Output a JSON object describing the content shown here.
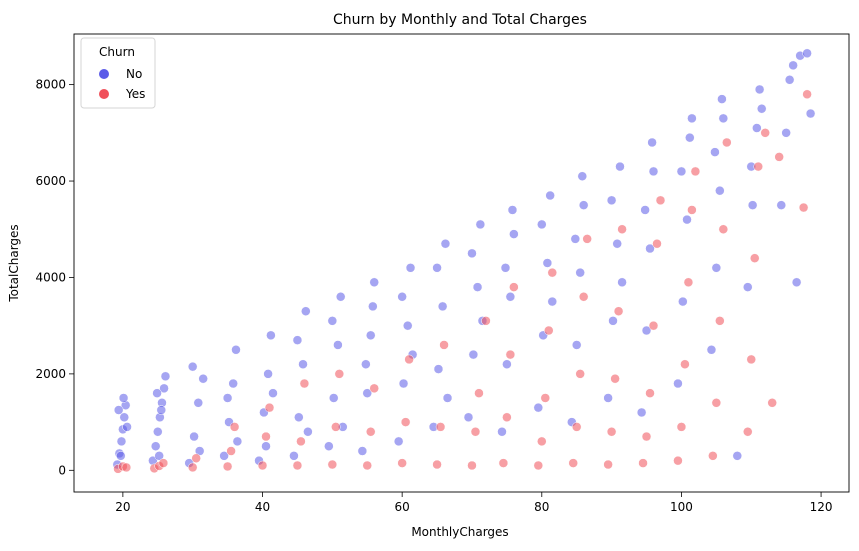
{
  "chart_data": {
    "type": "scatter",
    "title": "Churn by Monthly and Total Charges",
    "xlabel": "MonthlyCharges",
    "ylabel": "TotalCharges",
    "xlim": [
      13,
      124
    ],
    "ylim": [
      -450,
      9050
    ],
    "xticks": [
      20,
      40,
      60,
      80,
      100,
      120
    ],
    "yticks": [
      0,
      2000,
      4000,
      6000,
      8000
    ],
    "grid": false,
    "legend": {
      "title": "Churn",
      "placement": "top-left",
      "entries": [
        {
          "label": "No",
          "color": "#5b5be8"
        },
        {
          "label": "Yes",
          "color": "#f0505a"
        }
      ]
    },
    "series": [
      {
        "name": "No",
        "color": "#5b5be8",
        "points": [
          [
            19.2,
            120
          ],
          [
            19.5,
            350
          ],
          [
            19.8,
            600
          ],
          [
            20.0,
            850
          ],
          [
            20.2,
            1100
          ],
          [
            20.4,
            1350
          ],
          [
            20.1,
            1500
          ],
          [
            19.7,
            300
          ],
          [
            20.6,
            900
          ],
          [
            19.4,
            1250
          ],
          [
            24.3,
            200
          ],
          [
            24.7,
            500
          ],
          [
            25.0,
            800
          ],
          [
            25.3,
            1100
          ],
          [
            25.6,
            1400
          ],
          [
            25.9,
            1700
          ],
          [
            26.1,
            1950
          ],
          [
            24.9,
            1600
          ],
          [
            25.2,
            300
          ],
          [
            25.5,
            1250
          ],
          [
            29.5,
            150
          ],
          [
            30.2,
            700
          ],
          [
            30.8,
            1400
          ],
          [
            31.5,
            1900
          ],
          [
            30.0,
            2150
          ],
          [
            31.0,
            400
          ],
          [
            34.5,
            300
          ],
          [
            35.2,
            1000
          ],
          [
            35.8,
            1800
          ],
          [
            36.2,
            2500
          ],
          [
            35.0,
            1500
          ],
          [
            36.4,
            600
          ],
          [
            39.5,
            200
          ],
          [
            40.2,
            1200
          ],
          [
            40.8,
            2000
          ],
          [
            41.2,
            2800
          ],
          [
            40.5,
            500
          ],
          [
            41.5,
            1600
          ],
          [
            44.5,
            300
          ],
          [
            45.2,
            1100
          ],
          [
            45.8,
            2200
          ],
          [
            46.2,
            3300
          ],
          [
            45.0,
            2700
          ],
          [
            46.5,
            800
          ],
          [
            49.5,
            500
          ],
          [
            50.2,
            1500
          ],
          [
            50.8,
            2600
          ],
          [
            51.2,
            3600
          ],
          [
            50.0,
            3100
          ],
          [
            51.5,
            900
          ],
          [
            54.3,
            400
          ],
          [
            55.0,
            1600
          ],
          [
            55.5,
            2800
          ],
          [
            56.0,
            3900
          ],
          [
            55.8,
            3400
          ],
          [
            54.8,
            2200
          ],
          [
            59.5,
            600
          ],
          [
            60.2,
            1800
          ],
          [
            60.8,
            3000
          ],
          [
            61.2,
            4200
          ],
          [
            60.0,
            3600
          ],
          [
            61.5,
            2400
          ],
          [
            64.5,
            900
          ],
          [
            65.2,
            2100
          ],
          [
            65.8,
            3400
          ],
          [
            66.2,
            4700
          ],
          [
            65.0,
            4200
          ],
          [
            66.5,
            1500
          ],
          [
            69.5,
            1100
          ],
          [
            70.2,
            2400
          ],
          [
            70.8,
            3800
          ],
          [
            71.2,
            5100
          ],
          [
            70.0,
            4500
          ],
          [
            71.5,
            3100
          ],
          [
            74.3,
            800
          ],
          [
            75.0,
            2200
          ],
          [
            75.5,
            3600
          ],
          [
            76.0,
            4900
          ],
          [
            75.8,
            5400
          ],
          [
            74.8,
            4200
          ],
          [
            79.5,
            1300
          ],
          [
            80.2,
            2800
          ],
          [
            80.8,
            4300
          ],
          [
            81.2,
            5700
          ],
          [
            80.0,
            5100
          ],
          [
            81.5,
            3500
          ],
          [
            84.3,
            1000
          ],
          [
            85.0,
            2600
          ],
          [
            85.5,
            4100
          ],
          [
            86.0,
            5500
          ],
          [
            85.8,
            6100
          ],
          [
            84.8,
            4800
          ],
          [
            89.5,
            1500
          ],
          [
            90.2,
            3100
          ],
          [
            90.8,
            4700
          ],
          [
            91.2,
            6300
          ],
          [
            90.0,
            5600
          ],
          [
            91.5,
            3900
          ],
          [
            94.3,
            1200
          ],
          [
            95.0,
            2900
          ],
          [
            95.5,
            4600
          ],
          [
            96.0,
            6200
          ],
          [
            95.8,
            6800
          ],
          [
            94.8,
            5400
          ],
          [
            99.5,
            1800
          ],
          [
            100.2,
            3500
          ],
          [
            100.8,
            5200
          ],
          [
            101.2,
            6900
          ],
          [
            100.0,
            6200
          ],
          [
            101.5,
            7300
          ],
          [
            104.3,
            2500
          ],
          [
            105.0,
            4200
          ],
          [
            105.5,
            5800
          ],
          [
            106.0,
            7300
          ],
          [
            105.8,
            7700
          ],
          [
            104.8,
            6600
          ],
          [
            109.5,
            3800
          ],
          [
            110.2,
            5500
          ],
          [
            110.8,
            7100
          ],
          [
            111.2,
            7900
          ],
          [
            110.0,
            6300
          ],
          [
            111.5,
            7500
          ],
          [
            114.3,
            5500
          ],
          [
            115.0,
            7000
          ],
          [
            115.5,
            8100
          ],
          [
            116.0,
            8400
          ],
          [
            116.5,
            3900
          ],
          [
            117.0,
            8600
          ],
          [
            118.0,
            8650
          ],
          [
            118.5,
            7400
          ],
          [
            108.0,
            300
          ]
        ]
      },
      {
        "name": "Yes",
        "color": "#f0505a",
        "points": [
          [
            19.3,
            30
          ],
          [
            20.0,
            80
          ],
          [
            20.5,
            60
          ],
          [
            24.5,
            40
          ],
          [
            25.2,
            90
          ],
          [
            25.8,
            150
          ],
          [
            30.0,
            60
          ],
          [
            30.5,
            250
          ],
          [
            35.0,
            80
          ],
          [
            35.5,
            400
          ],
          [
            36.0,
            900
          ],
          [
            40.0,
            100
          ],
          [
            40.5,
            700
          ],
          [
            41.0,
            1300
          ],
          [
            45.0,
            100
          ],
          [
            45.5,
            600
          ],
          [
            46.0,
            1800
          ],
          [
            50.0,
            120
          ],
          [
            50.5,
            900
          ],
          [
            51.0,
            2000
          ],
          [
            55.0,
            100
          ],
          [
            55.5,
            800
          ],
          [
            56.0,
            1700
          ],
          [
            60.0,
            150
          ],
          [
            60.5,
            1000
          ],
          [
            61.0,
            2300
          ],
          [
            65.0,
            120
          ],
          [
            65.5,
            900
          ],
          [
            66.0,
            2600
          ],
          [
            70.0,
            100
          ],
          [
            70.5,
            800
          ],
          [
            71.0,
            1600
          ],
          [
            72.0,
            3100
          ],
          [
            74.5,
            150
          ],
          [
            75.0,
            1100
          ],
          [
            75.5,
            2400
          ],
          [
            76.0,
            3800
          ],
          [
            79.5,
            100
          ],
          [
            80.0,
            600
          ],
          [
            80.5,
            1500
          ],
          [
            81.0,
            2900
          ],
          [
            81.5,
            4100
          ],
          [
            84.5,
            150
          ],
          [
            85.0,
            900
          ],
          [
            85.5,
            2000
          ],
          [
            86.0,
            3600
          ],
          [
            86.5,
            4800
          ],
          [
            89.5,
            120
          ],
          [
            90.0,
            800
          ],
          [
            90.5,
            1900
          ],
          [
            91.0,
            3300
          ],
          [
            91.5,
            5000
          ],
          [
            94.5,
            150
          ],
          [
            95.0,
            700
          ],
          [
            95.5,
            1600
          ],
          [
            96.0,
            3000
          ],
          [
            96.5,
            4700
          ],
          [
            97.0,
            5600
          ],
          [
            99.5,
            200
          ],
          [
            100.0,
            900
          ],
          [
            100.5,
            2200
          ],
          [
            101.0,
            3900
          ],
          [
            101.5,
            5400
          ],
          [
            102.0,
            6200
          ],
          [
            104.5,
            300
          ],
          [
            105.0,
            1400
          ],
          [
            105.5,
            3100
          ],
          [
            106.0,
            5000
          ],
          [
            106.5,
            6800
          ],
          [
            109.5,
            800
          ],
          [
            110.0,
            2300
          ],
          [
            110.5,
            4400
          ],
          [
            111.0,
            6300
          ],
          [
            112.0,
            7000
          ],
          [
            113.0,
            1400
          ],
          [
            114.0,
            6500
          ],
          [
            117.5,
            5450
          ],
          [
            118.0,
            7800
          ]
        ]
      }
    ]
  }
}
